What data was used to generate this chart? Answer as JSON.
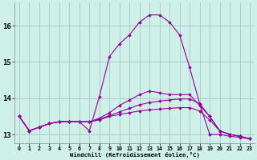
{
  "xlabel": "Windchill (Refroidissement éolien,°C)",
  "bg_color": "#cef0e8",
  "grid_color": "#aacccc",
  "line_color": "#990099",
  "xlim": [
    -0.5,
    23.5
  ],
  "ylim": [
    12.75,
    16.65
  ],
  "yticks": [
    13,
    14,
    15,
    16
  ],
  "xticks": [
    0,
    1,
    2,
    3,
    4,
    5,
    6,
    7,
    8,
    9,
    10,
    11,
    12,
    13,
    14,
    15,
    16,
    17,
    18,
    19,
    20,
    21,
    22,
    23
  ],
  "series": [
    [
      13.5,
      13.1,
      13.2,
      13.3,
      13.35,
      13.35,
      13.35,
      13.1,
      14.05,
      15.15,
      15.5,
      15.75,
      16.1,
      16.3,
      16.3,
      16.1,
      15.75,
      14.85,
      13.85,
      13.0,
      13.0,
      12.95,
      12.92,
      12.88
    ],
    [
      13.5,
      13.1,
      13.2,
      13.3,
      13.35,
      13.35,
      13.35,
      13.35,
      13.45,
      13.6,
      13.8,
      13.95,
      14.1,
      14.2,
      14.15,
      14.1,
      14.1,
      14.1,
      13.8,
      13.5,
      13.1,
      13.0,
      12.95,
      12.88
    ],
    [
      13.5,
      13.1,
      13.2,
      13.3,
      13.35,
      13.35,
      13.35,
      13.35,
      13.42,
      13.52,
      13.62,
      13.72,
      13.82,
      13.88,
      13.92,
      13.95,
      13.98,
      13.98,
      13.85,
      13.5,
      13.1,
      13.0,
      12.95,
      12.88
    ],
    [
      13.5,
      13.1,
      13.2,
      13.3,
      13.35,
      13.35,
      13.35,
      13.35,
      13.4,
      13.5,
      13.55,
      13.6,
      13.65,
      13.68,
      13.7,
      13.72,
      13.74,
      13.74,
      13.65,
      13.4,
      13.1,
      13.0,
      12.95,
      12.88
    ]
  ]
}
